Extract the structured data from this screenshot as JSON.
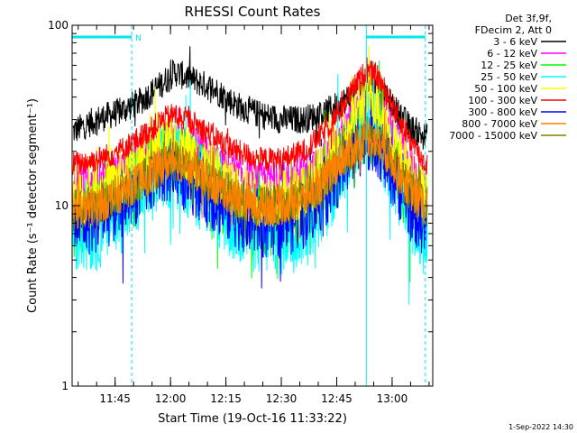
{
  "chart_data": {
    "type": "line",
    "title": "RHESSI Count Rates",
    "xlabel": "Start Time (19-Oct-16 11:33:22)",
    "ylabel": "Count Rate (s⁻¹ detector segment⁻¹)",
    "y_scale": "log",
    "ylim": [
      1,
      100
    ],
    "y_ticks": [
      "1",
      "10",
      "100"
    ],
    "x_range": [
      "11:33:22",
      "13:11:00"
    ],
    "x_ticks": [
      "11:45",
      "12:00",
      "12:15",
      "12:30",
      "12:45",
      "13:00"
    ],
    "legend_header": [
      "Det 3f,9f,",
      "FDecim 2, Att 0"
    ],
    "legend_placement": "right",
    "footer_date": "1-Sep-2022 14:30",
    "night_marker_label": "N",
    "night_intervals": [
      [
        "11:33:22",
        "11:49:30"
      ],
      [
        "12:53:00",
        "13:09:00"
      ]
    ],
    "series": [
      {
        "name": "3 - 6 keV",
        "color": "#000000",
        "x": [
          "11:34",
          "11:40",
          "11:46",
          "11:52",
          "11:58",
          "12:01",
          "12:06",
          "12:12",
          "12:18",
          "12:24",
          "12:30",
          "12:36",
          "12:42",
          "12:46",
          "12:50",
          "12:53",
          "12:56",
          "12:59",
          "13:02",
          "13:05",
          "13:09"
        ],
        "values": [
          26,
          30,
          33,
          38,
          48,
          55,
          50,
          44,
          36,
          32,
          30,
          30,
          33,
          37,
          42,
          46,
          44,
          38,
          32,
          27,
          24
        ]
      },
      {
        "name": "6 - 12 keV",
        "color": "#ff00ff",
        "x": [
          "11:34",
          "11:40",
          "11:46",
          "11:52",
          "11:58",
          "12:01",
          "12:06",
          "12:12",
          "12:18",
          "12:24",
          "12:30",
          "12:36",
          "12:42",
          "12:46",
          "12:50",
          "12:53",
          "12:56",
          "12:59",
          "13:02",
          "13:05",
          "13:09"
        ],
        "values": [
          13,
          14,
          16,
          19,
          23,
          24,
          22,
          18,
          15,
          14,
          14,
          15,
          18,
          24,
          32,
          38,
          36,
          28,
          22,
          17,
          13
        ]
      },
      {
        "name": "12 - 25 keV",
        "color": "#00ff00",
        "x": [
          "11:34",
          "11:40",
          "11:46",
          "11:52",
          "11:58",
          "12:01",
          "12:06",
          "12:12",
          "12:18",
          "12:24",
          "12:30",
          "12:36",
          "12:42",
          "12:46",
          "12:50",
          "12:53",
          "12:56",
          "12:59",
          "13:02",
          "13:05",
          "13:09"
        ],
        "values": [
          8,
          9,
          11,
          14,
          18,
          19,
          16,
          12,
          9,
          8,
          8,
          9,
          12,
          17,
          23,
          27,
          25,
          19,
          14,
          10,
          8
        ]
      },
      {
        "name": "25 - 50 keV",
        "color": "#00ffff",
        "x": [
          "11:34",
          "11:40",
          "11:46",
          "11:52",
          "11:58",
          "12:01",
          "12:06",
          "12:12",
          "12:18",
          "12:24",
          "12:30",
          "12:36",
          "12:42",
          "12:46",
          "12:50",
          "12:53",
          "12:56",
          "12:59",
          "13:02",
          "13:05",
          "13:09"
        ],
        "values": [
          7,
          7.5,
          9,
          12,
          16,
          17,
          14,
          10,
          8,
          7,
          7,
          8,
          11,
          16,
          22,
          28,
          25,
          18,
          13,
          9,
          7
        ]
      },
      {
        "name": "50 - 100 keV",
        "color": "#ffff00",
        "x": [
          "11:34",
          "11:40",
          "11:46",
          "11:52",
          "11:58",
          "12:01",
          "12:06",
          "12:12",
          "12:18",
          "12:24",
          "12:30",
          "12:36",
          "12:42",
          "12:46",
          "12:50",
          "12:53",
          "12:56",
          "12:59",
          "13:02",
          "13:05",
          "13:09"
        ],
        "values": [
          11,
          12,
          14,
          17,
          21,
          22,
          19,
          15,
          12,
          11,
          11,
          12,
          16,
          22,
          32,
          42,
          38,
          27,
          19,
          14,
          11
        ]
      },
      {
        "name": "100 - 300 keV",
        "color": "#ff0000",
        "x": [
          "11:34",
          "11:40",
          "11:46",
          "11:52",
          "11:58",
          "12:01",
          "12:06",
          "12:12",
          "12:18",
          "12:24",
          "12:30",
          "12:36",
          "12:42",
          "12:46",
          "12:50",
          "12:53",
          "12:56",
          "12:59",
          "13:02",
          "13:05",
          "13:09"
        ],
        "values": [
          17,
          18,
          20,
          24,
          30,
          32,
          29,
          24,
          20,
          18,
          18,
          20,
          26,
          34,
          46,
          56,
          52,
          40,
          30,
          23,
          17
        ]
      },
      {
        "name": "300 - 800 keV",
        "color": "#0000ff",
        "x": [
          "11:34",
          "11:40",
          "11:46",
          "11:52",
          "11:58",
          "12:01",
          "12:06",
          "12:12",
          "12:18",
          "12:24",
          "12:30",
          "12:36",
          "12:42",
          "12:46",
          "12:50",
          "12:53",
          "12:56",
          "12:59",
          "13:02",
          "13:05",
          "13:09"
        ],
        "values": [
          8,
          8.5,
          10,
          13,
          16,
          16,
          14,
          11,
          9,
          8,
          8,
          9,
          12,
          16,
          21,
          25,
          23,
          17,
          13,
          10,
          8
        ]
      },
      {
        "name": "800 - 7000 keV",
        "color": "#ff8000",
        "x": [
          "11:34",
          "11:40",
          "11:46",
          "11:52",
          "11:58",
          "12:01",
          "12:06",
          "12:12",
          "12:18",
          "12:24",
          "12:30",
          "12:36",
          "12:42",
          "12:46",
          "12:50",
          "12:53",
          "12:56",
          "12:59",
          "13:02",
          "13:05",
          "13:09"
        ],
        "values": [
          9.5,
          10,
          11.5,
          14,
          17,
          18,
          16,
          13,
          11,
          10,
          10,
          11,
          14,
          18,
          21,
          24,
          23,
          19,
          15,
          12,
          10
        ]
      },
      {
        "name": "7000 - 15000 keV",
        "color": "#808000",
        "x": [
          "11:34",
          "11:40",
          "11:46",
          "11:52",
          "11:58",
          "12:01",
          "12:06",
          "12:12",
          "12:18",
          "12:24",
          "12:30",
          "12:36",
          "12:42",
          "12:46",
          "12:50",
          "12:53",
          "12:56",
          "12:59",
          "13:02",
          "13:05",
          "13:09"
        ],
        "values": [
          9.5,
          10,
          11.5,
          14,
          17,
          18,
          16,
          13,
          11,
          10,
          10,
          11,
          14,
          18,
          21,
          24,
          23,
          19,
          15,
          12,
          10
        ]
      }
    ]
  }
}
